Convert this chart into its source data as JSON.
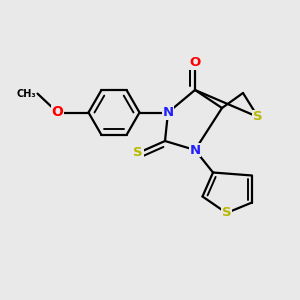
{
  "bg_color": "#e9e9e9",
  "bond_color": "#000000",
  "bond_width": 1.6,
  "N_color": "#2020ff",
  "S_color": "#b8b800",
  "O_color": "#ff0000",
  "font_size": 8.5,
  "xlim": [
    -0.12,
    0.88
  ],
  "ylim": [
    0.05,
    0.95
  ]
}
